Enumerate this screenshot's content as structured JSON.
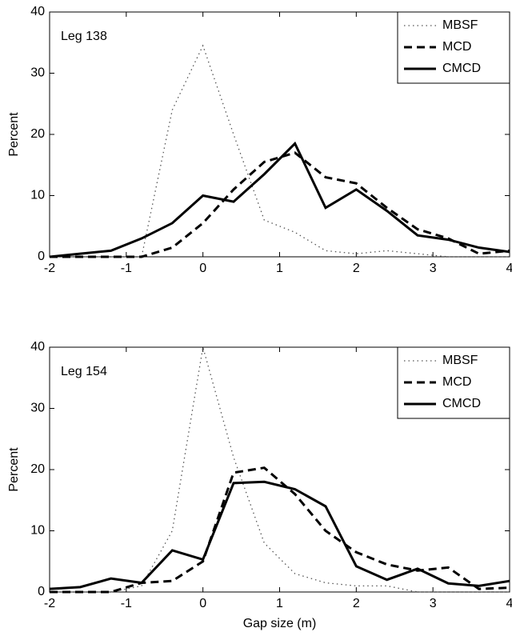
{
  "chart_data": [
    {
      "type": "line",
      "annotation": "Leg 138",
      "ylabel": "Percent",
      "x": [
        -2,
        -1.6,
        -1.2,
        -0.8,
        -0.4,
        0,
        0.4,
        0.8,
        1.2,
        1.6,
        2.0,
        2.4,
        2.8,
        3.2,
        3.6,
        4.0
      ],
      "series": [
        {
          "name": "MBSF",
          "color": "#555555",
          "linestyle": "dotted",
          "values": [
            0,
            0,
            0,
            0,
            24,
            34.5,
            20,
            6,
            4,
            1,
            0.5,
            1,
            0.5,
            0,
            0,
            0
          ]
        },
        {
          "name": "MCD",
          "color": "#000000",
          "linestyle": "dashed",
          "values": [
            0,
            0,
            0,
            0,
            1.5,
            5.5,
            11,
            15.5,
            17,
            13,
            12,
            8,
            4.5,
            3,
            0.5,
            1
          ]
        },
        {
          "name": "CMCD",
          "color": "#000000",
          "linestyle": "solid",
          "values": [
            0,
            0.5,
            1,
            3,
            5.5,
            10,
            9,
            13.5,
            18.5,
            8,
            11,
            7.5,
            3.5,
            2.8,
            1.5,
            0.8
          ]
        }
      ],
      "xlim": [
        -2,
        4
      ],
      "ylim": [
        0,
        40
      ],
      "xticks": [
        -2,
        -1,
        0,
        1,
        2,
        3,
        4
      ],
      "yticks": [
        0,
        10,
        20,
        30,
        40
      ],
      "legend": "upper right"
    },
    {
      "type": "line",
      "annotation": "Leg 154",
      "ylabel": "Percent",
      "xlabel": "Gap size (m)",
      "x": [
        -2,
        -1.6,
        -1.2,
        -0.8,
        -0.4,
        0,
        0.4,
        0.8,
        1.2,
        1.6,
        2.0,
        2.4,
        2.8,
        3.2,
        3.6,
        4.0
      ],
      "series": [
        {
          "name": "MBSF",
          "color": "#555555",
          "linestyle": "dotted",
          "values": [
            0,
            0,
            0,
            1,
            10,
            40,
            22,
            8,
            3,
            1.5,
            1,
            1,
            0,
            0,
            0,
            0
          ]
        },
        {
          "name": "MCD",
          "color": "#000000",
          "linestyle": "dashed",
          "values": [
            0,
            0,
            0,
            1.5,
            1.8,
            5,
            19.5,
            20.3,
            16,
            10,
            6.5,
            4.5,
            3.5,
            4,
            0.5,
            0.7
          ]
        },
        {
          "name": "CMCD",
          "color": "#000000",
          "linestyle": "solid",
          "values": [
            0.5,
            0.8,
            2.2,
            1.5,
            6.8,
            5.3,
            17.8,
            18,
            16.8,
            14,
            4.2,
            2,
            3.8,
            1.4,
            1,
            1.8
          ]
        }
      ],
      "xlim": [
        -2,
        4
      ],
      "ylim": [
        0,
        40
      ],
      "xticks": [
        -2,
        -1,
        0,
        1,
        2,
        3,
        4
      ],
      "yticks": [
        0,
        10,
        20,
        30,
        40
      ],
      "legend": "upper right"
    }
  ]
}
